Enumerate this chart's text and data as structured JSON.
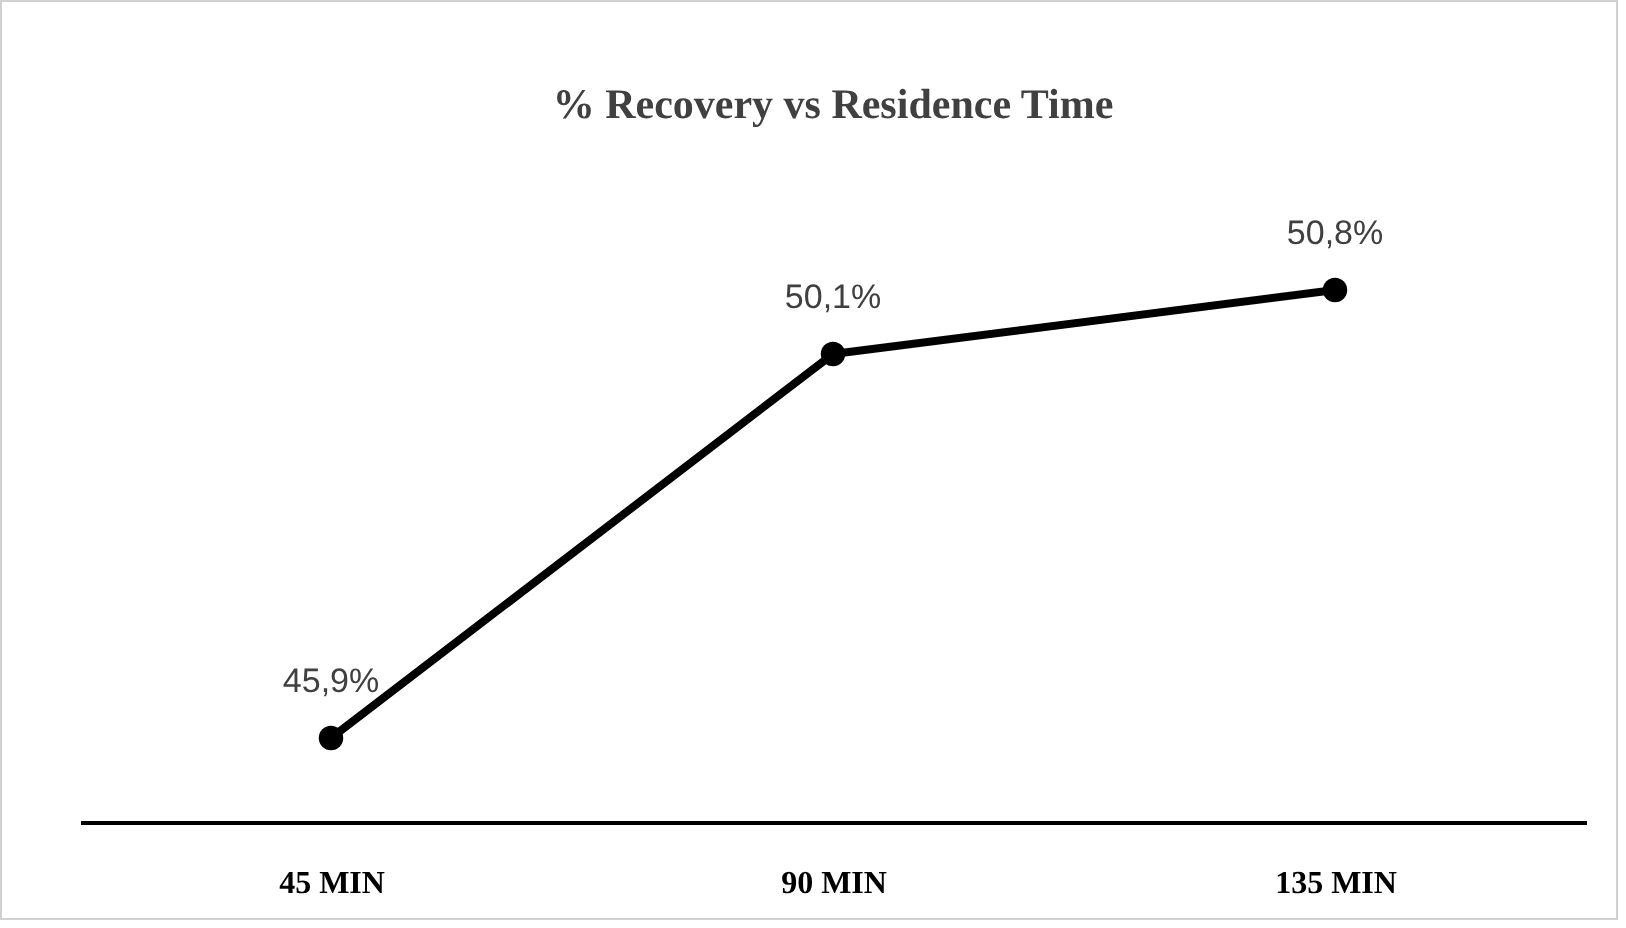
{
  "chart_data": {
    "type": "line",
    "title": "% Recovery vs Residence Time",
    "categories": [
      "45 MIN",
      "90 MIN",
      "135 MIN"
    ],
    "series": [
      {
        "color": "#000000",
        "values": [
          45.9,
          50.1,
          50.8
        ],
        "value_labels": [
          "45,9%",
          "50,1%",
          "50,8%"
        ]
      }
    ],
    "tick_labels": "x",
    "grid": false,
    "legend": false,
    "marker": "circle",
    "line_style": "solid"
  }
}
